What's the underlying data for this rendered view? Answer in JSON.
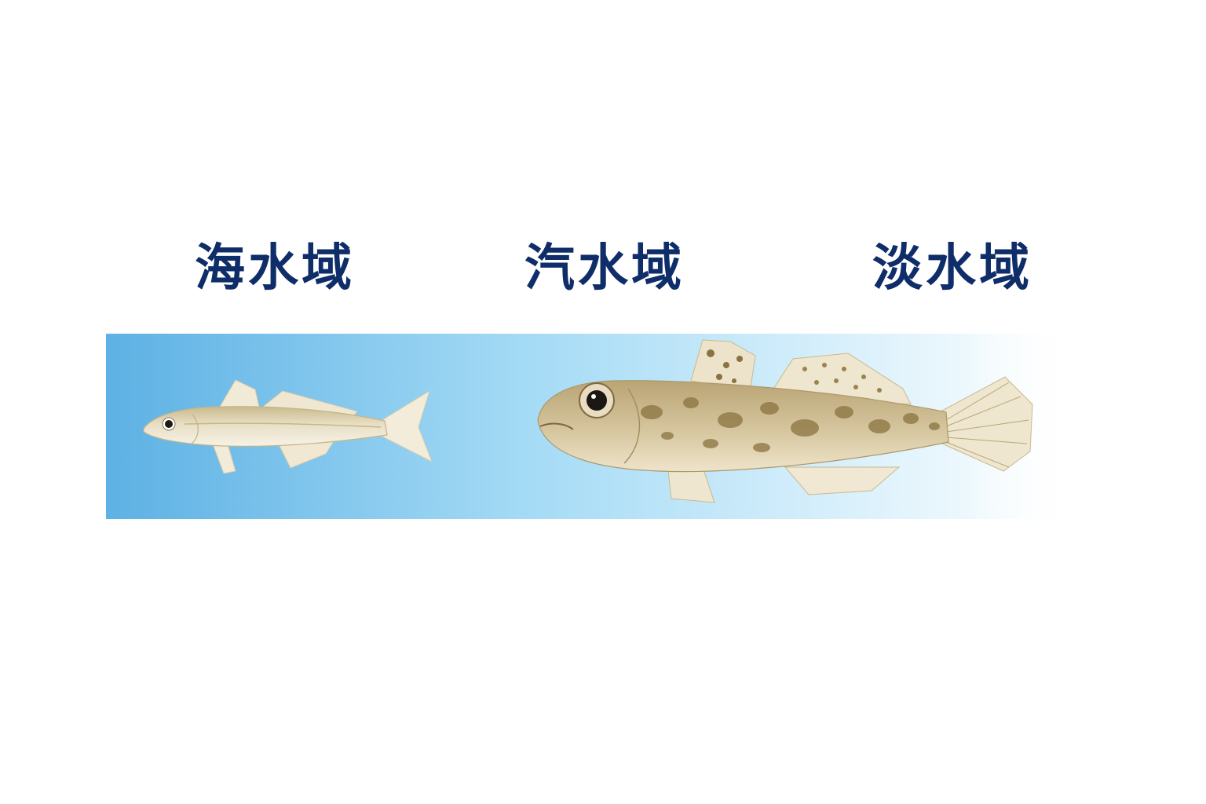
{
  "labels": {
    "sea": "海水域",
    "brackish": "汽水域",
    "fresh": "淡水域"
  },
  "colors": {
    "label_text": "#0f2d68",
    "water_sea": "#5db1e4",
    "water_brackish": "#a7dcf6",
    "water_fresh": "#ffffff",
    "fish_sea_body": "#e6dcc0",
    "fish_goby_body": "#cdb98d",
    "goby_spots": "#8a7340"
  },
  "illustrations": {
    "sea_fish": "marine-fish-illustration",
    "brackish_fish": "goby-fish-illustration"
  }
}
